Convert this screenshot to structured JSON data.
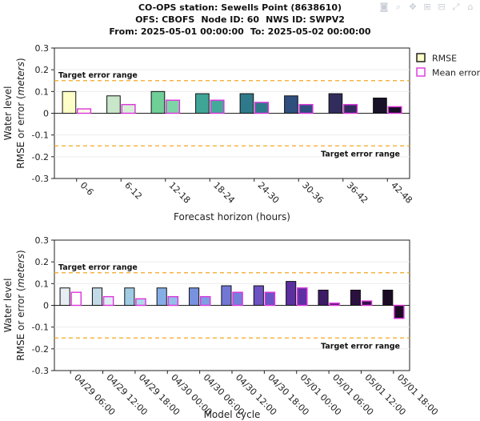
{
  "header": {
    "station_label": "CO-OPS station:",
    "station_name": "Sewells Point (8638610)",
    "ofs_label": "OFS:",
    "ofs_value": "CBOFS",
    "node_label": "Node ID:",
    "node_value": "60",
    "nws_label": "NWS ID:",
    "nws_value": "SWPV2",
    "from_label": "From:",
    "from_value": "2025-05-01 00:00:00",
    "to_label": "To:",
    "to_value": "2025-05-02 00:00:00"
  },
  "toolbar": {
    "icons": [
      "camera-icon",
      "zoom-icon",
      "pan-icon",
      "zoom-in-icon",
      "zoom-out-icon",
      "autoscale-icon",
      "reset-axes-icon"
    ]
  },
  "chart_data": [
    {
      "type": "bar",
      "xlabel": "Forecast horizon (hours)",
      "ylabel_line1": "Water level",
      "ylabel_line2_prefix": "RMSE or error (",
      "ylabel_line2_unit": "meters",
      "ylabel_line2_suffix": ")",
      "ylim": [
        -0.3,
        0.3
      ],
      "yticks": [
        "-0.3",
        "-0.2",
        "-0.1",
        "0",
        "0.1",
        "0.2",
        "0.3"
      ],
      "grid": true,
      "legend_position": "top-right",
      "target_error_range": {
        "label": "Target error range",
        "upper": 0.15,
        "lower": -0.15,
        "color": "#f5a623"
      },
      "categories": [
        "0-6",
        "6-12",
        "12-18",
        "18-24",
        "24-30",
        "30-36",
        "36-42",
        "42-48"
      ],
      "series": [
        {
          "name": "RMSE",
          "values": [
            0.1,
            0.08,
            0.1,
            0.09,
            0.09,
            0.08,
            0.09,
            0.07
          ],
          "colors": [
            "#fefec8",
            "#c8e6c9",
            "#6fcf97",
            "#3fa597",
            "#2f7a8a",
            "#2f4f7f",
            "#302d5c",
            "#181128"
          ]
        },
        {
          "name": "Mean error",
          "values": [
            0.02,
            0.04,
            0.06,
            0.06,
            0.05,
            0.04,
            0.04,
            0.03
          ],
          "colors": [
            "#fdfde6",
            "#d7eed6",
            "#7fd4a5",
            "#45a99a",
            "#2f7a8a",
            "#2f4f7f",
            "#302d5c",
            "#181128"
          ]
        }
      ],
      "legend": [
        {
          "name": "RMSE",
          "swatch": "#fefec8",
          "border": "#111111"
        },
        {
          "name": "Mean error",
          "swatch": "#ffffff",
          "border": "#dd33dd"
        }
      ]
    },
    {
      "type": "bar",
      "xlabel": "Model cycle",
      "ylabel_line1": "Water level",
      "ylabel_line2_prefix": "RMSE or error (",
      "ylabel_line2_unit": "meters",
      "ylabel_line2_suffix": ")",
      "ylim": [
        -0.3,
        0.3
      ],
      "yticks": [
        "-0.3",
        "-0.2",
        "-0.1",
        "0",
        "0.1",
        "0.2",
        "0.3"
      ],
      "grid": true,
      "target_error_range": {
        "label": "Target error range",
        "upper": 0.15,
        "lower": -0.15,
        "color": "#f5a623"
      },
      "categories": [
        "04/29 06:00",
        "04/29 12:00",
        "04/29 18:00",
        "04/30 00:00",
        "04/30 06:00",
        "04/30 12:00",
        "04/30 18:00",
        "05/01 00:00",
        "05/01 06:00",
        "05/01 12:00",
        "05/01 18:00"
      ],
      "series": [
        {
          "name": "RMSE",
          "values": [
            0.08,
            0.08,
            0.08,
            0.08,
            0.08,
            0.09,
            0.09,
            0.11,
            0.07,
            0.07,
            0.07
          ],
          "colors": [
            "#e6eef3",
            "#c2dbe6",
            "#9fcbe4",
            "#86aee6",
            "#7992e0",
            "#7277d6",
            "#6c52c2",
            "#5b2fa0",
            "#3d1b66",
            "#2b1140",
            "#1a0a24"
          ]
        },
        {
          "name": "Mean error",
          "values": [
            0.06,
            0.04,
            0.03,
            0.04,
            0.04,
            0.06,
            0.06,
            0.08,
            0.01,
            0.02,
            -0.06
          ],
          "colors": [
            "#ffffff",
            "#dfeef4",
            "#b0d6ea",
            "#95bde8",
            "#7f9ee2",
            "#7580da",
            "#6c55c4",
            "#5d30a3",
            "#431c6f",
            "#2e1244",
            "#1b0a24"
          ]
        }
      ]
    }
  ]
}
